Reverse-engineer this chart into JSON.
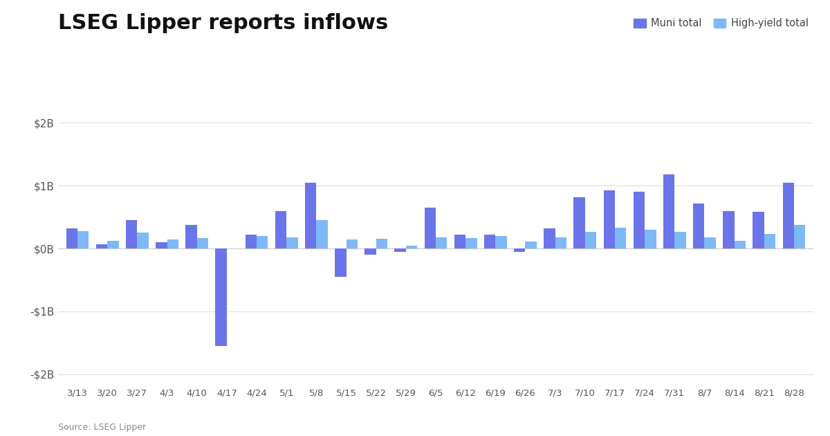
{
  "title": "LSEG Lipper reports inflows",
  "source": "Source: LSEG Lipper",
  "categories": [
    "3/13",
    "3/20",
    "3/27",
    "4/3",
    "4/10",
    "4/17",
    "4/24",
    "5/1",
    "5/8",
    "5/15",
    "5/22",
    "5/29",
    "6/5",
    "6/12",
    "6/19",
    "6/26",
    "7/3",
    "7/10",
    "7/17",
    "7/24",
    "7/31",
    "8/7",
    "8/14",
    "8/21",
    "8/28"
  ],
  "muni": [
    0.32,
    0.07,
    0.45,
    0.1,
    0.38,
    -1.55,
    0.22,
    0.6,
    1.05,
    -0.45,
    -0.1,
    -0.05,
    0.65,
    0.22,
    0.22,
    -0.05,
    0.32,
    0.82,
    0.93,
    0.9,
    1.18,
    0.72,
    0.6,
    0.58,
    1.05
  ],
  "hy": [
    0.28,
    0.12,
    0.25,
    0.14,
    0.17,
    0.0,
    0.2,
    0.18,
    0.45,
    0.14,
    0.15,
    0.04,
    0.18,
    0.17,
    0.2,
    0.11,
    0.18,
    0.27,
    0.33,
    0.3,
    0.27,
    0.18,
    0.12,
    0.23,
    0.38
  ],
  "muni_color": "#6B74E8",
  "hy_color": "#7EB8F7",
  "ylim": [
    -2.15,
    2.15
  ],
  "yticks": [
    -2,
    -1,
    0,
    1,
    2
  ],
  "ytick_labels": [
    "-$2B",
    "-$1B",
    "$0B",
    "$1B",
    "$2B"
  ],
  "title_fontsize": 22,
  "legend_labels": [
    "Muni total",
    "High-yield total"
  ],
  "background_color": "#ffffff",
  "grid_color": "#dddddd",
  "bar_width": 0.38
}
